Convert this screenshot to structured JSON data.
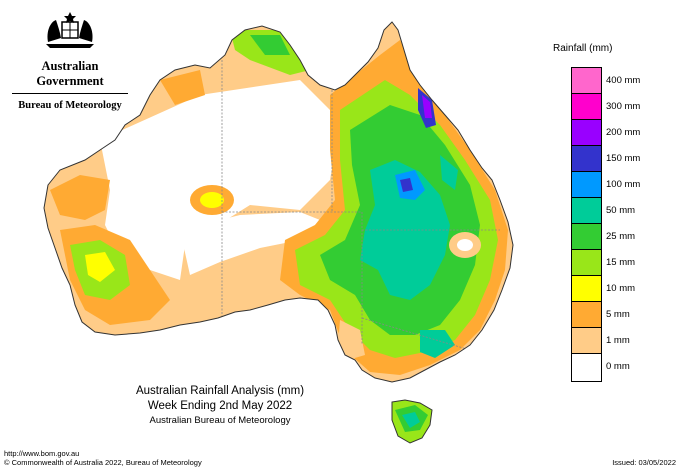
{
  "header": {
    "government": "Australian Government",
    "agency": "Bureau of Meteorology",
    "crest_icon": "coat-of-arms-icon"
  },
  "legend": {
    "title": "Rainfall (mm)",
    "items": [
      {
        "label": "400 mm",
        "color": "#ff66cc"
      },
      {
        "label": "300 mm",
        "color": "#ff00cc"
      },
      {
        "label": "200 mm",
        "color": "#9900ff"
      },
      {
        "label": "150 mm",
        "color": "#3333cc"
      },
      {
        "label": "100 mm",
        "color": "#0099ff"
      },
      {
        "label": "50 mm",
        "color": "#00cc99"
      },
      {
        "label": "25 mm",
        "color": "#33cc33"
      },
      {
        "label": "15 mm",
        "color": "#99e619"
      },
      {
        "label": "10 mm",
        "color": "#ffff00"
      },
      {
        "label": "5 mm",
        "color": "#ffaa33"
      },
      {
        "label": "1 mm",
        "color": "#ffcc88"
      },
      {
        "label": "0 mm",
        "color": "#ffffff"
      }
    ]
  },
  "title": {
    "line1": "Australian Rainfall Analysis (mm)",
    "line2": "Week Ending 2nd May 2022",
    "line3": "Australian Bureau of Meteorology"
  },
  "footer": {
    "url": "http://www.bom.gov.au",
    "copyright": "© Commonwealth of Australia 2022, Bureau of Meteorology",
    "issued": "Issued: 03/05/2022"
  }
}
